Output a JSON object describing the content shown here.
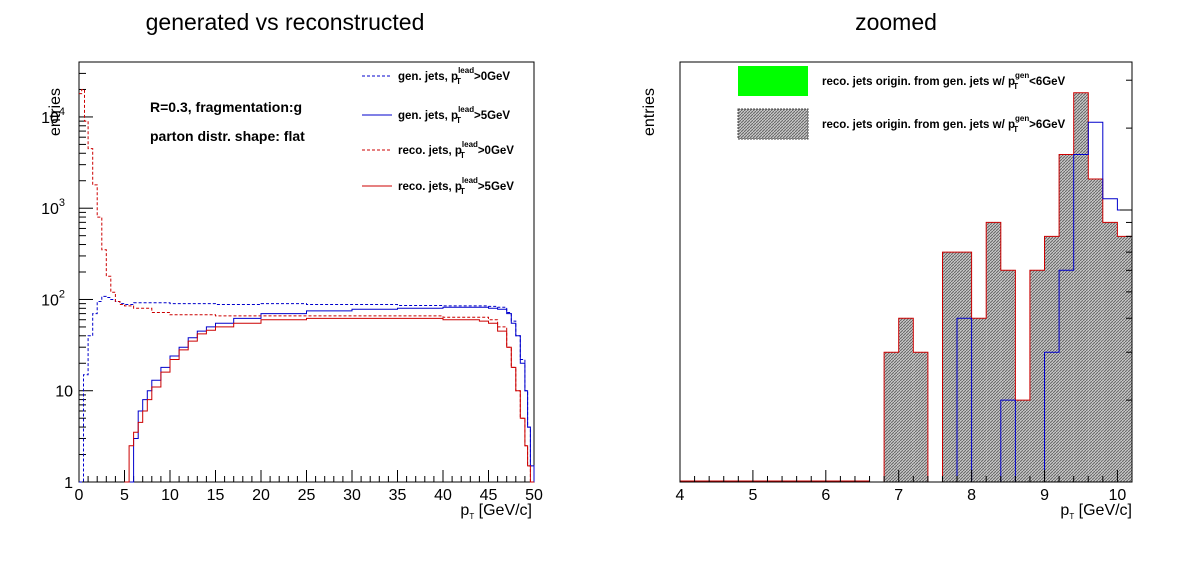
{
  "colors": {
    "blue": "#0000cc",
    "red": "#cc0000",
    "green": "#00ff00",
    "gray_fill": "#999999",
    "axis": "#000000"
  },
  "chart_data": [
    {
      "type": "line",
      "title": "generated vs reconstructed",
      "xlabel": {
        "main": "p",
        "sub": "T",
        "unit": " [GeV/c]"
      },
      "ylabel": "entries",
      "xlim": [
        0,
        50
      ],
      "ylim": [
        1,
        40000
      ],
      "yscale": "log",
      "x_ticks": [
        "0",
        "5",
        "10",
        "15",
        "20",
        "25",
        "30",
        "35",
        "40",
        "45",
        "50"
      ],
      "y_ticks": [
        {
          "value": 1,
          "base": "1",
          "exp": ""
        },
        {
          "value": 10,
          "base": "10",
          "exp": ""
        },
        {
          "value": 100,
          "base": "10",
          "exp": "2"
        },
        {
          "value": 1000,
          "base": "10",
          "exp": "3"
        },
        {
          "value": 10000,
          "base": "10",
          "exp": "4"
        }
      ],
      "annotations": [
        "R=0.3, fragmentation:g",
        "parton distr. shape: flat"
      ],
      "legend_position": "top-right",
      "series": [
        {
          "name": "gen. jets, p_T^lead>0GeV",
          "label_pre": "gen. jets, p",
          "label_sub": "T",
          "label_sup": "lead",
          "label_post": ">0GeV",
          "color": "blue",
          "style": "dashed",
          "x": [
            0,
            0.5,
            1,
            1.5,
            2,
            2.5,
            3,
            3.5,
            4,
            4.5,
            5,
            6,
            8,
            10,
            15,
            20,
            25,
            30,
            35,
            40,
            44,
            45,
            46,
            47,
            47.5,
            48,
            48.5,
            49,
            49.3,
            49.6,
            50
          ],
          "y": [
            1,
            15,
            40,
            70,
            95,
            108,
            105,
            100,
            95,
            90,
            88,
            92,
            92,
            90,
            88,
            90,
            88,
            88,
            86,
            85,
            85,
            84,
            82,
            72,
            58,
            40,
            22,
            10,
            4,
            1.5,
            1
          ]
        },
        {
          "name": "gen. jets, p_T^lead>5GeV",
          "label_pre": "gen. jets, p",
          "label_sub": "T",
          "label_sup": "lead",
          "label_post": ">5GeV",
          "color": "blue",
          "style": "solid",
          "x": [
            5.5,
            6,
            6.5,
            7,
            7.5,
            8,
            9,
            10,
            11,
            12,
            13,
            14,
            15,
            17,
            20,
            25,
            30,
            35,
            40,
            44,
            45,
            46,
            47,
            47.5,
            48,
            48.5,
            49,
            49.3,
            49.6,
            50
          ],
          "y": [
            1,
            3,
            6,
            8,
            10,
            13,
            18,
            24,
            30,
            38,
            45,
            50,
            55,
            62,
            70,
            75,
            78,
            80,
            82,
            82,
            80,
            78,
            70,
            55,
            40,
            20,
            10,
            4,
            1.5,
            1
          ]
        },
        {
          "name": "reco. jets, p_T^lead>0GeV",
          "label_pre": "reco. jets, p",
          "label_sub": "T",
          "label_sup": "lead",
          "label_post": ">0GeV",
          "color": "red",
          "style": "dashed",
          "x": [
            0,
            0.3,
            0.6,
            1,
            1.5,
            2,
            2.5,
            3,
            3.5,
            4,
            4.5,
            5,
            6,
            8,
            10,
            15,
            20,
            25,
            30,
            35,
            40,
            44,
            45,
            46,
            47,
            47.5,
            48,
            48.5,
            49,
            49.3,
            49.6,
            50
          ],
          "y": [
            18000,
            20000,
            9000,
            4500,
            1800,
            800,
            350,
            180,
            120,
            95,
            88,
            85,
            80,
            72,
            68,
            66,
            66,
            66,
            66,
            66,
            64,
            64,
            60,
            50,
            30,
            18,
            10,
            5,
            2.5,
            1.5,
            1,
            1
          ]
        },
        {
          "name": "reco. jets, p_T^lead>5GeV",
          "label_pre": "reco. jets, p",
          "label_sub": "T",
          "label_sup": "lead",
          "label_post": ">5GeV",
          "color": "red",
          "style": "solid",
          "x": [
            5,
            5.5,
            6,
            6.5,
            7,
            7.5,
            8,
            9,
            10,
            11,
            12,
            13,
            14,
            15,
            17,
            20,
            25,
            30,
            35,
            40,
            44,
            45,
            46,
            47,
            47.5,
            48,
            48.5,
            49,
            49.3,
            49.6,
            50
          ],
          "y": [
            1,
            2.5,
            3.5,
            4.5,
            6,
            8,
            11,
            16,
            22,
            28,
            35,
            42,
            46,
            50,
            55,
            60,
            62,
            62,
            62,
            60,
            58,
            55,
            45,
            30,
            18,
            10,
            5,
            2.5,
            1.5,
            1,
            1
          ]
        }
      ]
    },
    {
      "type": "bar",
      "title": "zoomed",
      "xlabel": {
        "main": "p",
        "sub": "T",
        "unit": " [GeV/c]"
      },
      "ylabel": "entries",
      "xlim": [
        4,
        10.2
      ],
      "ylim": [
        1,
        35
      ],
      "yscale": "log",
      "x_ticks": [
        "4",
        "5",
        "6",
        "7",
        "8",
        "9",
        "10"
      ],
      "legend_position": "top",
      "legend": [
        {
          "label_pre": "reco. jets origin. from gen. jets w/ p",
          "label_sub": "T",
          "label_sup": "gen",
          "label_post": "<6GeV",
          "fill": "green"
        },
        {
          "label_pre": "reco. jets origin. from gen. jets w/ p",
          "label_sub": "T",
          "label_sup": "gen",
          "label_post": ">6GeV",
          "fill": "gray_fill"
        }
      ],
      "bins": {
        "edges": [
          4,
          4.2,
          4.4,
          4.6,
          4.8,
          5,
          5.2,
          5.4,
          5.6,
          5.8,
          6,
          6.2,
          6.4,
          6.6,
          6.8,
          7,
          7.2,
          7.4,
          7.6,
          7.8,
          8,
          8.2,
          8.4,
          8.6,
          8.8,
          9,
          9.2,
          9.4,
          9.6,
          9.8,
          10,
          10.2
        ],
        "reco_gen_gt6": [
          0,
          0,
          0,
          0,
          0,
          0,
          0,
          0,
          0,
          0,
          0,
          0,
          0,
          0,
          3,
          4,
          3,
          0,
          7,
          7,
          4,
          9,
          6,
          2,
          6,
          8,
          16,
          27,
          13,
          9,
          8
        ],
        "gen_blue": [
          0,
          0,
          0,
          0,
          0,
          0,
          0,
          0,
          0,
          0,
          0,
          0,
          0,
          0,
          0,
          0,
          0,
          0,
          0,
          4,
          1,
          1,
          2,
          1,
          1,
          3,
          6,
          16,
          21,
          11,
          10
        ]
      }
    }
  ]
}
